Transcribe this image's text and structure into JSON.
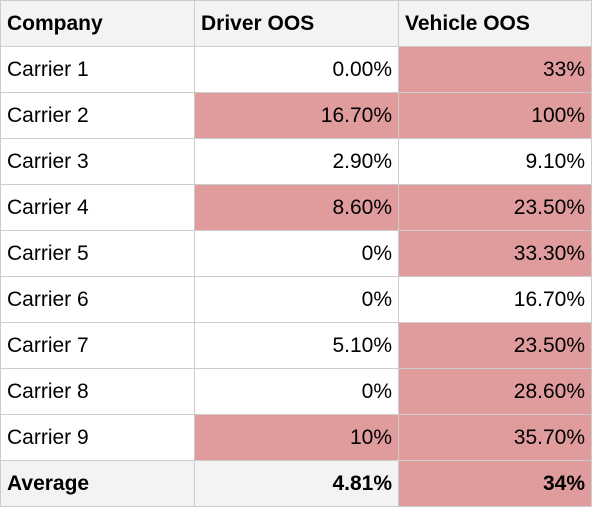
{
  "headers": {
    "company": "Company",
    "driver_oos": "Driver OOS",
    "vehicle_oos": "Vehicle OOS"
  },
  "rows": [
    {
      "company": "Carrier 1",
      "driver_oos": "0.00%",
      "vehicle_oos": "33%"
    },
    {
      "company": "Carrier 2",
      "driver_oos": "16.70%",
      "vehicle_oos": "100%"
    },
    {
      "company": "Carrier 3",
      "driver_oos": "2.90%",
      "vehicle_oos": "9.10%"
    },
    {
      "company": "Carrier 4",
      "driver_oos": "8.60%",
      "vehicle_oos": "23.50%"
    },
    {
      "company": "Carrier 5",
      "driver_oos": "0%",
      "vehicle_oos": "33.30%"
    },
    {
      "company": "Carrier 6",
      "driver_oos": "0%",
      "vehicle_oos": "16.70%"
    },
    {
      "company": "Carrier 7",
      "driver_oos": "5.10%",
      "vehicle_oos": "23.50%"
    },
    {
      "company": "Carrier 8",
      "driver_oos": "0%",
      "vehicle_oos": "28.60%"
    },
    {
      "company": "Carrier 9",
      "driver_oos": "10%",
      "vehicle_oos": "35.70%"
    }
  ],
  "average": {
    "company": "Average",
    "driver_oos": "4.81%",
    "vehicle_oos": "34%"
  },
  "highlighted": {
    "driver_oos": [
      false,
      true,
      false,
      true,
      false,
      false,
      false,
      false,
      true
    ],
    "vehicle_oos": [
      true,
      true,
      false,
      true,
      true,
      false,
      true,
      true,
      true
    ],
    "average_driver_oos": false,
    "average_vehicle_oos": true
  },
  "colors": {
    "highlight": "#e09b9c",
    "header_bg": "#f3f3f3",
    "border": "#cccccc"
  }
}
